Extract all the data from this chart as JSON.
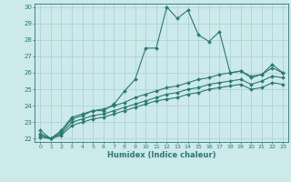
{
  "xlabel": "Humidex (Indice chaleur)",
  "xlim": [
    -0.5,
    23.5
  ],
  "ylim": [
    21.8,
    30.2
  ],
  "yticks": [
    22,
    23,
    24,
    25,
    26,
    27,
    28,
    29,
    30
  ],
  "xticks": [
    0,
    1,
    2,
    3,
    4,
    5,
    6,
    7,
    8,
    9,
    10,
    11,
    12,
    13,
    14,
    15,
    16,
    17,
    18,
    19,
    20,
    21,
    22,
    23
  ],
  "bg_color": "#cce9eb",
  "line_color": "#2a7a70",
  "grid_color": "#aacfd4",
  "line1": [
    22.5,
    22.0,
    22.5,
    23.3,
    23.5,
    23.7,
    23.7,
    24.1,
    24.9,
    25.6,
    27.5,
    27.5,
    30.0,
    29.3,
    29.8,
    28.3,
    27.9,
    28.5,
    26.0,
    26.1,
    25.7,
    25.9,
    26.5,
    26.0
  ],
  "line2": [
    22.3,
    22.0,
    22.4,
    23.2,
    23.4,
    23.7,
    23.8,
    24.0,
    24.2,
    24.5,
    24.7,
    24.9,
    25.1,
    25.2,
    25.4,
    25.6,
    25.7,
    25.9,
    26.0,
    26.1,
    25.8,
    25.9,
    26.3,
    26.0
  ],
  "line3": [
    22.2,
    22.0,
    22.3,
    23.0,
    23.2,
    23.4,
    23.5,
    23.7,
    23.9,
    24.1,
    24.3,
    24.5,
    24.7,
    24.8,
    25.0,
    25.1,
    25.3,
    25.4,
    25.5,
    25.6,
    25.3,
    25.5,
    25.8,
    25.7
  ],
  "line4": [
    22.1,
    22.0,
    22.2,
    22.8,
    23.0,
    23.2,
    23.3,
    23.5,
    23.7,
    23.9,
    24.1,
    24.3,
    24.4,
    24.5,
    24.7,
    24.8,
    25.0,
    25.1,
    25.2,
    25.3,
    25.0,
    25.1,
    25.4,
    25.3
  ]
}
